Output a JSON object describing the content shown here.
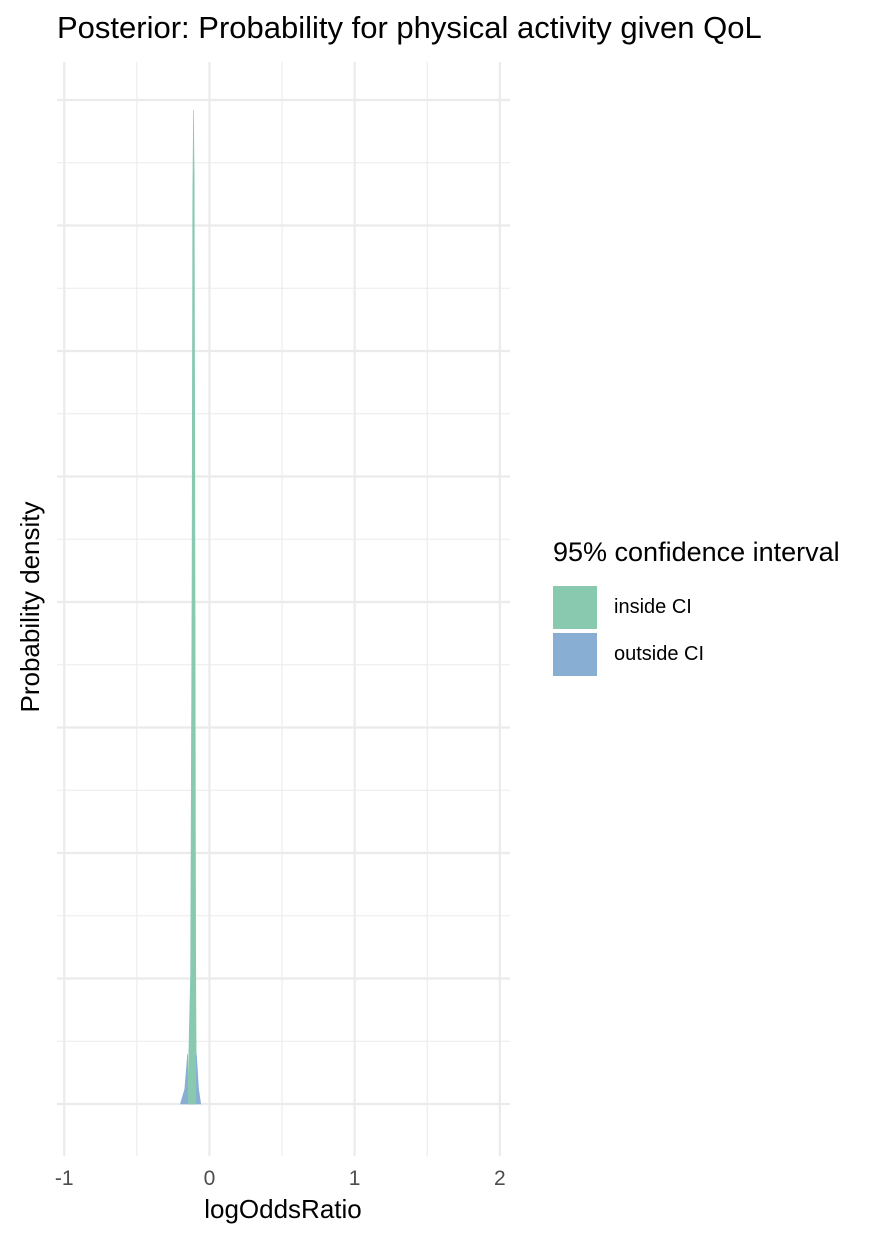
{
  "chart_data": {
    "type": "area",
    "title": "Posterior: Probability for physical activity given QoL",
    "xlabel": "logOddsRatio",
    "ylabel": "Probability density",
    "xlim": [
      -1.05,
      2.07
    ],
    "ylim": [
      0,
      1
    ],
    "x_ticks": [
      -1,
      0,
      1,
      2
    ],
    "x_tick_labels": [
      "-1",
      "0",
      "1",
      "2"
    ],
    "y_tick_labels": [],
    "grid": true,
    "legend": {
      "title": "95% confidence interval",
      "placement": "right",
      "entries": [
        {
          "name": "inside CI",
          "color": "#88c9b0"
        },
        {
          "name": "outside CI",
          "color": "#88aed3"
        }
      ]
    },
    "series": [
      {
        "name": "inside CI",
        "color": "#88c9b0",
        "x": [
          -0.15,
          -0.13,
          -0.12,
          -0.115,
          -0.11,
          -0.105,
          -0.1,
          -0.095,
          -0.09
        ],
        "y": [
          0.0,
          0.13,
          0.52,
          0.9,
          0.99,
          0.92,
          0.56,
          0.15,
          0.0
        ]
      },
      {
        "name": "outside CI",
        "color": "#88aed3",
        "x": [
          -0.2,
          -0.17,
          -0.15,
          -0.15,
          -0.13,
          -0.09,
          -0.09,
          -0.075,
          -0.06
        ],
        "y": [
          0.0,
          0.015,
          0.05,
          0.0,
          0.0,
          0.0,
          0.05,
          0.015,
          0.0
        ]
      }
    ]
  }
}
